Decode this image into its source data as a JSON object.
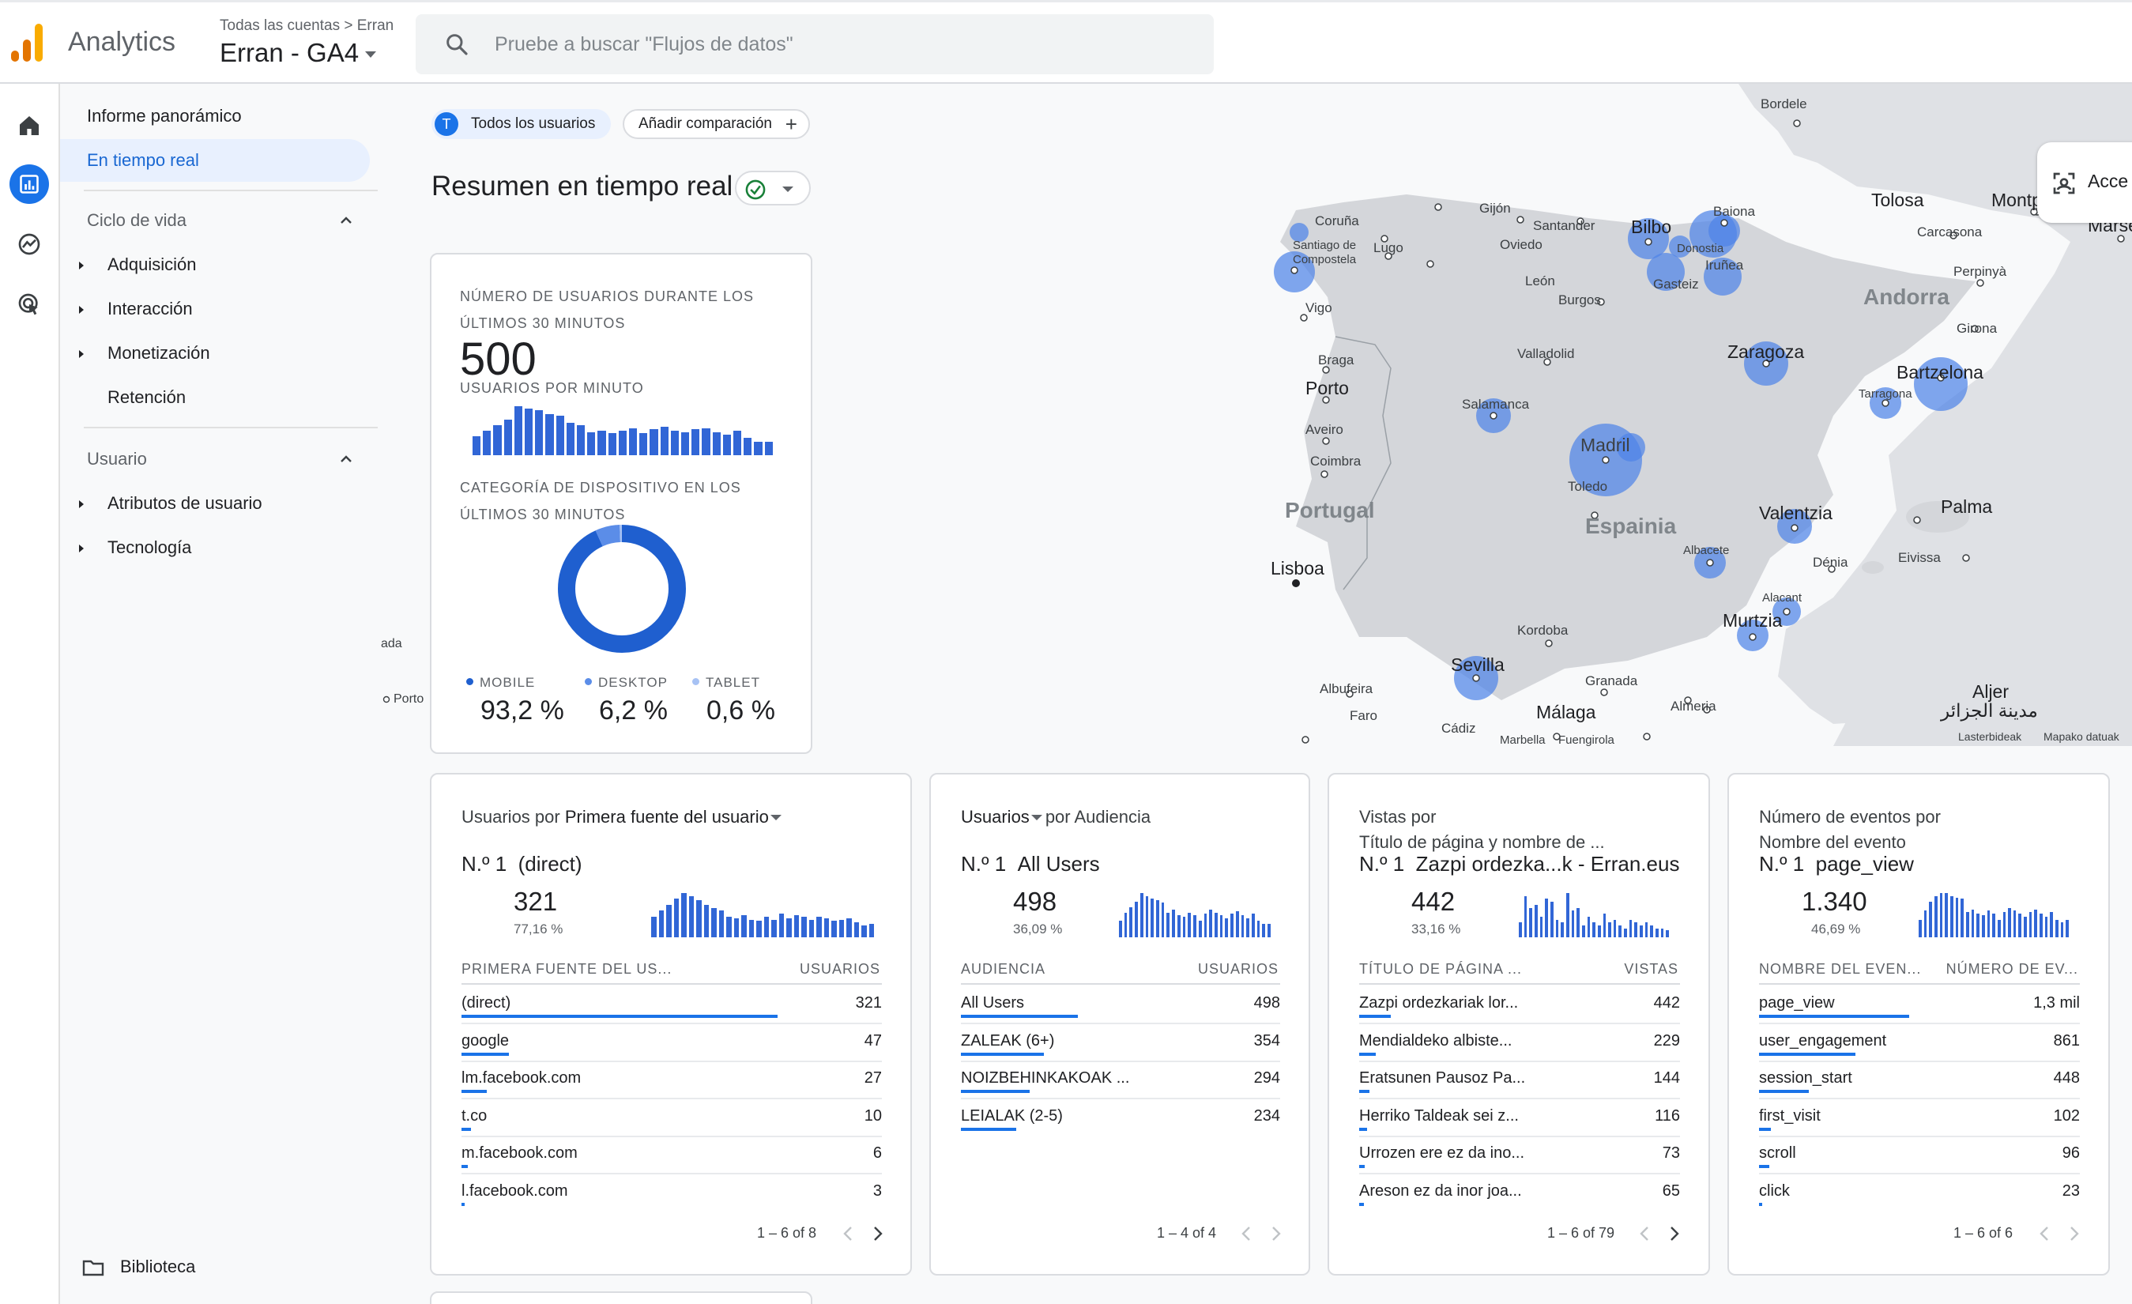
{
  "app": {
    "name": "Analytics",
    "breadcrumb": "Todas las cuentas > Erran",
    "property": "Erran - GA4",
    "search_placeholder": "Pruebe a buscar \"Flujos de datos\""
  },
  "nav": {
    "overview": "Informe panorámico",
    "realtime": "En tiempo real",
    "lifecycle": "Ciclo de vida",
    "lifecycle_items": [
      "Adquisición",
      "Interacción",
      "Monetización",
      "Retención"
    ],
    "user": "Usuario",
    "user_items": [
      "Atributos de usuario",
      "Tecnología"
    ],
    "library": "Biblioteca"
  },
  "toolbar": {
    "all_users_avatar": "T",
    "all_users": "Todos los usuarios",
    "add_comparison": "Añadir comparación",
    "title": "Resumen en tiempo real"
  },
  "summary": {
    "users_caption_1": "NÚMERO DE USUARIOS DURANTE LOS",
    "users_caption_2": "ÚLTIMOS 30 MINUTOS",
    "users_value": "500",
    "per_minute_caption": "USUARIOS POR MINUTO",
    "per_minute_bars": [
      14,
      18,
      22,
      26,
      36,
      34,
      33,
      30,
      29,
      24,
      22,
      17,
      18,
      16,
      18,
      20,
      16,
      19,
      21,
      18,
      17,
      19,
      20,
      17,
      15,
      18,
      13,
      10,
      10
    ],
    "device_caption_1": "CATEGORÍA DE DISPOSITIVO EN LOS",
    "device_caption_2": "ÚLTIMOS 30 MINUTOS",
    "devices": [
      {
        "label": "MOBILE",
        "value": "93,2 %",
        "fraction": 0.932,
        "color": "#1f5fcf"
      },
      {
        "label": "DESKTOP",
        "value": "6,2 %",
        "fraction": 0.062,
        "color": "#5b8de8"
      },
      {
        "label": "TABLET",
        "value": "0,6 %",
        "fraction": 0.006,
        "color": "#a7c2f4"
      }
    ]
  },
  "map": {
    "cities": [
      "Bordele",
      "Gijón",
      "Santander",
      "Bilbo",
      "Baiona",
      "Donostia",
      "Iruñea",
      "Gasteiz",
      "Coruña",
      "Santiago de Compostela",
      "Lugo",
      "Oviedo",
      "León",
      "Burgos",
      "Vigo",
      "Valladolid",
      "Zaragoza",
      "Braga",
      "Porto",
      "Salamanca",
      "Aveiro",
      "Coimbra",
      "Madril",
      "Toledo",
      "Lisboa",
      "Valentzia",
      "Albacete",
      "Dénia",
      "Alacant",
      "Murtzia",
      "Kordoba",
      "Sevilla",
      "Granada",
      "Almeria",
      "Málaga",
      "Albufeira",
      "Faro",
      "Cádiz",
      "Marbella",
      "Fuengirola",
      "Tolosa",
      "Carcasona",
      "Montp",
      "Marse",
      "Perpinyà",
      "Girona",
      "Bartzelona",
      "Tarragona",
      "Palma",
      "Eivissa",
      "Aljer",
      "مدينة الجزائر"
    ],
    "countries": [
      "Portugal",
      "Espainia",
      "Andorra"
    ],
    "access_button": "Acce",
    "attribution_1": "Lasterbideak",
    "attribution_2": "Mapako datuak",
    "edge_label_1": "ada",
    "edge_label_2": "Porto"
  },
  "cards": [
    {
      "head_prefix": "Usuarios por ",
      "head_dim": "Primera fuente del usuario",
      "rank": "N.º 1",
      "top": "(direct)",
      "value": "321",
      "pct": "77,16 %",
      "col1": "PRIMERA FUENTE DEL US...",
      "col2": "USUARIOS",
      "rows": [
        {
          "name": "(direct)",
          "value": "321",
          "bar": 1.0
        },
        {
          "name": "google",
          "value": "47",
          "bar": 0.15
        },
        {
          "name": "lm.facebook.com",
          "value": "27",
          "bar": 0.08
        },
        {
          "name": "t.co",
          "value": "10",
          "bar": 0.03
        },
        {
          "name": "m.facebook.com",
          "value": "6",
          "bar": 0.02
        },
        {
          "name": "l.facebook.com",
          "value": "3",
          "bar": 0.01
        }
      ],
      "pager": "1 – 6 of 8",
      "spark": [
        14,
        18,
        22,
        26,
        30,
        28,
        25,
        22,
        20,
        18,
        14,
        13,
        15,
        12,
        11,
        14,
        12,
        16,
        13,
        15,
        14,
        12,
        14,
        13,
        11,
        12,
        13,
        10,
        8,
        9
      ]
    },
    {
      "head_prefix": "Usuarios",
      "head_dim": "por Audiencia",
      "rank": "N.º 1",
      "top": "All Users",
      "value": "498",
      "pct": "36,09 %",
      "col1": "AUDIENCIA",
      "col2": "USUARIOS",
      "rows": [
        {
          "name": "All Users",
          "value": "498",
          "bar": 1.0
        },
        {
          "name": "ZALEAK (6+)",
          "value": "354",
          "bar": 0.71
        },
        {
          "name": "NOIZBEHINKAKOAK ...",
          "value": "294",
          "bar": 0.59
        },
        {
          "name": "LEIALAK (2-5)",
          "value": "234",
          "bar": 0.47
        }
      ],
      "pager": "1 – 4 of 4",
      "spark": [
        12,
        18,
        22,
        26,
        32,
        30,
        28,
        27,
        25,
        18,
        20,
        16,
        15,
        18,
        16,
        12,
        17,
        20,
        18,
        16,
        14,
        17,
        19,
        16,
        14,
        17,
        12,
        10,
        10
      ]
    },
    {
      "head_prefix": "Vistas por",
      "head_line2": "Título de página y nombre de ...",
      "rank": "N.º 1",
      "top": "Zazpi ordezka...k - Erran.eus",
      "value": "442",
      "pct": "33,16 %",
      "col1": "TÍTULO DE PÁGINA ...",
      "col2": "VISTAS",
      "rows": [
        {
          "name": "Zazpi ordezkariak lor...",
          "value": "442",
          "bar": 1.0
        },
        {
          "name": "Mendialdeko albiste...",
          "value": "229",
          "bar": 0.52
        },
        {
          "name": "Eratsunen Pausoz Pa...",
          "value": "144",
          "bar": 0.33
        },
        {
          "name": "Herriko Taldeak sei z...",
          "value": "116",
          "bar": 0.26
        },
        {
          "name": "Urrozen ere ez da ino...",
          "value": "73",
          "bar": 0.17
        },
        {
          "name": "Areson ez da inor joa...",
          "value": "65",
          "bar": 0.15
        }
      ],
      "pager": "1 – 6 of 79",
      "spark": [
        10,
        28,
        20,
        22,
        14,
        26,
        24,
        12,
        10,
        30,
        18,
        20,
        8,
        14,
        10,
        8,
        16,
        10,
        12,
        8,
        6,
        12,
        10,
        8,
        10,
        8,
        6,
        6,
        5
      ]
    },
    {
      "head_prefix": "Número de eventos por",
      "head_line2": "Nombre del evento",
      "rank": "N.º 1",
      "top": "page_view",
      "value": "1.340",
      "pct": "46,69 %",
      "col1": "NOMBRE DEL EVEN...",
      "col2": "NÚMERO DE EV...",
      "rows": [
        {
          "name": "page_view",
          "value": "1,3 mil",
          "bar": 1.0
        },
        {
          "name": "user_engagement",
          "value": "861",
          "bar": 0.64
        },
        {
          "name": "session_start",
          "value": "448",
          "bar": 0.33
        },
        {
          "name": "first_visit",
          "value": "102",
          "bar": 0.08
        },
        {
          "name": "scroll",
          "value": "96",
          "bar": 0.07
        },
        {
          "name": "click",
          "value": "23",
          "bar": 0.02
        }
      ],
      "pager": "1 – 6 of 6",
      "spark": [
        12,
        18,
        24,
        28,
        30,
        30,
        28,
        27,
        26,
        17,
        19,
        16,
        15,
        18,
        16,
        12,
        17,
        20,
        18,
        16,
        14,
        17,
        19,
        16,
        14,
        17,
        12,
        10,
        12
      ]
    }
  ]
}
